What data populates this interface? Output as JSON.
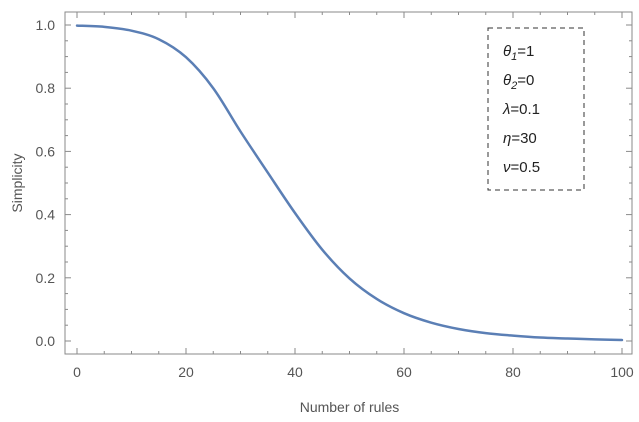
{
  "chart_data": {
    "type": "line",
    "xlabel": "Number of rules",
    "ylabel": "Simplicity",
    "xlim": [
      0,
      100
    ],
    "ylim": [
      0,
      1.0
    ],
    "xticks": [
      0,
      20,
      40,
      60,
      80,
      100
    ],
    "yticks": [
      0.0,
      0.2,
      0.4,
      0.6,
      0.8,
      1.0
    ],
    "xtick_labels": [
      "0",
      "20",
      "40",
      "60",
      "80",
      "100"
    ],
    "ytick_labels": [
      "0.0",
      "0.2",
      "0.4",
      "0.6",
      "0.8",
      "1.0"
    ],
    "legend_placement": "top-right",
    "line_color": "#5b7fb5",
    "legend_entries": [
      {
        "symbol": "θ",
        "sub": "1",
        "rest": "=1"
      },
      {
        "symbol": "θ",
        "sub": "2",
        "rest": "=0"
      },
      {
        "symbol": "λ",
        "sub": "",
        "rest": "=0.1"
      },
      {
        "symbol": "η",
        "sub": "",
        "rest": "=30"
      },
      {
        "symbol": "ν",
        "sub": "",
        "rest": "=0.5"
      }
    ],
    "series": [
      {
        "x": [
          0,
          5,
          10,
          15,
          20,
          25,
          30,
          35,
          40,
          45,
          50,
          55,
          60,
          65,
          70,
          75,
          80,
          85,
          90,
          95,
          100
        ],
        "y": [
          0.998,
          0.994,
          0.982,
          0.955,
          0.898,
          0.8,
          0.663,
          0.533,
          0.405,
          0.289,
          0.198,
          0.133,
          0.088,
          0.058,
          0.038,
          0.025,
          0.017,
          0.011,
          0.008,
          0.005,
          0.003
        ]
      }
    ]
  }
}
